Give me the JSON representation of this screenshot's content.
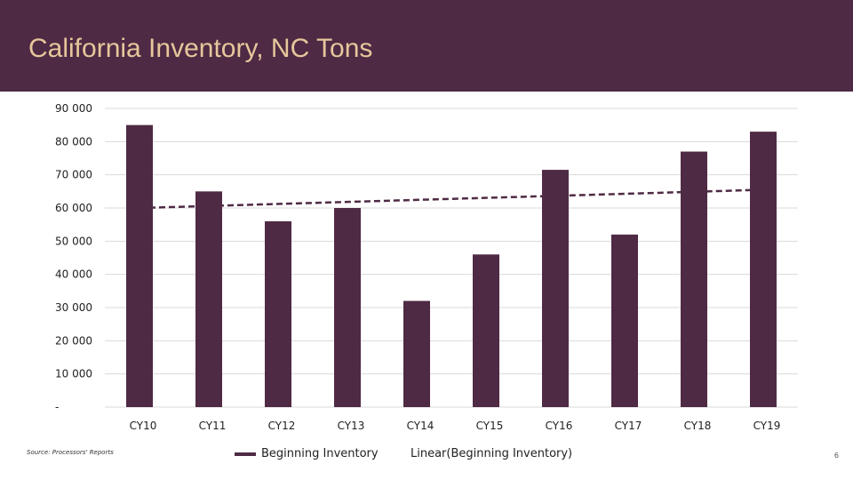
{
  "slide": {
    "title": "California Inventory, NC Tons",
    "source": "Source: Processors' Reports",
    "page_number": "6"
  },
  "chart_data": {
    "type": "bar",
    "title": "California Inventory, NC Tons",
    "categories": [
      "CY10",
      "CY11",
      "CY12",
      "CY13",
      "CY14",
      "CY15",
      "CY16",
      "CY17",
      "CY18",
      "CY19"
    ],
    "series": [
      {
        "name": "Beginning Inventory",
        "values": [
          85000,
          65000,
          56000,
          60000,
          32000,
          46000,
          71500,
          52000,
          77000,
          83000
        ],
        "color": "#4f2a44"
      }
    ],
    "trendline": {
      "name": "Linear(Beginning Inventory)",
      "start": 60000,
      "end": 65500,
      "color": "#4f2a44"
    },
    "ylim": [
      0,
      90000
    ],
    "yticks": [
      0,
      10000,
      20000,
      30000,
      40000,
      50000,
      60000,
      70000,
      80000,
      90000
    ],
    "ytick_labels": [
      "-",
      "10 000",
      "20 000",
      "30 000",
      "40 000",
      "50 000",
      "60 000",
      "70 000",
      "80 000",
      "90 000"
    ],
    "grid": true,
    "xlabel": "",
    "ylabel": "",
    "legend": [
      "Beginning Inventory",
      "Linear(Beginning Inventory)"
    ],
    "legend_position": "bottom"
  },
  "colors": {
    "header_bg": "#4f2a44",
    "title_text": "#e6c79c",
    "bar": "#4f2a44",
    "grid": "#d9d9d9"
  }
}
